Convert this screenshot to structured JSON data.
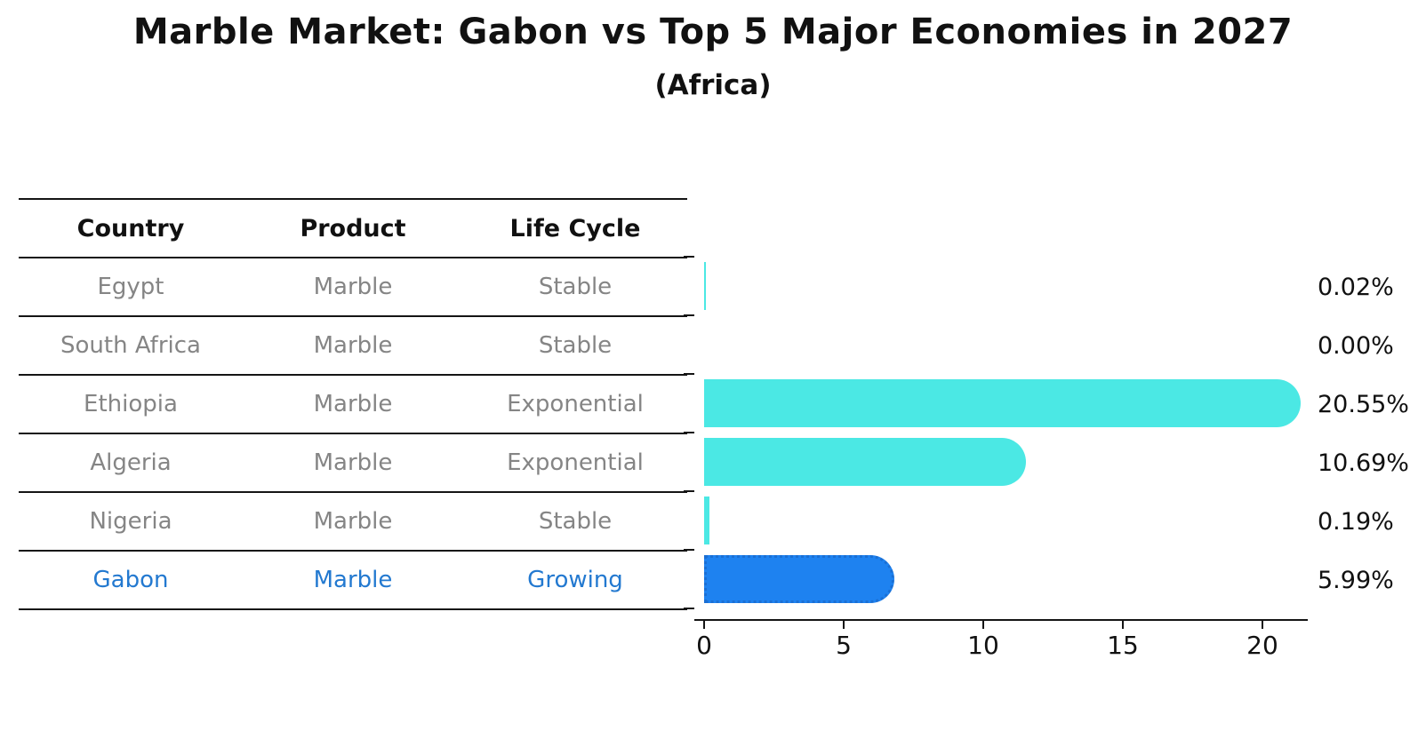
{
  "chart_data": {
    "type": "bar",
    "orientation": "horizontal",
    "title": "Marble Market: Gabon vs Top 5 Major Economies in 2027",
    "subtitle": "(Africa)",
    "categories": [
      "Egypt",
      "South Africa",
      "Ethiopia",
      "Algeria",
      "Nigeria",
      "Gabon"
    ],
    "values": [
      0.02,
      0.0,
      20.55,
      10.69,
      0.19,
      5.99
    ],
    "value_labels": [
      "0.02%",
      "0.00%",
      "20.55%",
      "10.69%",
      "0.19%",
      "5.99%"
    ],
    "x_ticks": [
      0,
      5,
      10,
      15,
      20
    ],
    "xlim": [
      0,
      21.5
    ],
    "grid": false,
    "legend": null,
    "highlight_category": "Gabon",
    "table": {
      "headers": [
        "Country",
        "Product",
        "Life Cycle"
      ],
      "rows": [
        {
          "country": "Egypt",
          "product": "Marble",
          "life_cycle": "Stable",
          "highlight": false
        },
        {
          "country": "South Africa",
          "product": "Marble",
          "life_cycle": "Stable",
          "highlight": false
        },
        {
          "country": "Ethiopia",
          "product": "Marble",
          "life_cycle": "Exponential",
          "highlight": false
        },
        {
          "country": "Algeria",
          "product": "Marble",
          "life_cycle": "Exponential",
          "highlight": false
        },
        {
          "country": "Nigeria",
          "product": "Marble",
          "life_cycle": "Stable",
          "highlight": false
        },
        {
          "country": "Gabon",
          "product": "Marble",
          "life_cycle": "Growing",
          "highlight": true
        }
      ]
    }
  },
  "colors": {
    "bar_default": "#4BE8E4",
    "bar_highlight": "#1E82F0",
    "bar_highlight_border": "#1A6FD4",
    "row_text": "#858585",
    "row_text_highlight": "#2379D0",
    "axis_text": "#111111",
    "line": "#151515"
  }
}
